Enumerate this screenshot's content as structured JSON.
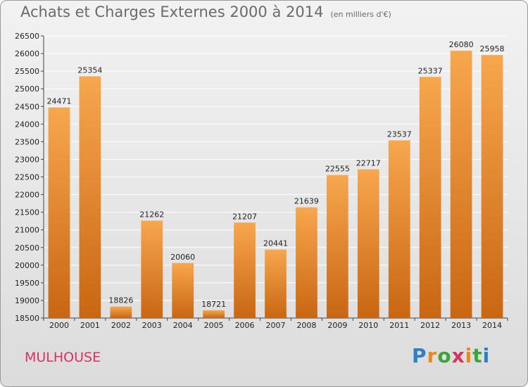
{
  "header": {
    "title": "Achats et Charges Externes 2000 à 2014",
    "subtitle": "(en milliers d'€)"
  },
  "footer": {
    "city": "MULHOUSE",
    "logo_text": "Proxiti"
  },
  "colors": {
    "bar_light": "#f7a74e",
    "bar_dark": "#c96612",
    "grid": "#ffffff",
    "logo_p": "#2f7fc8",
    "logo_r": "#e58a1f",
    "logo_o": "#3aa63a",
    "logo_x": "#d8325e"
  },
  "chart_data": {
    "type": "bar",
    "title": "Achats et Charges Externes 2000 à 2014",
    "subtitle": "(en milliers d'€)",
    "categories": [
      "2000",
      "2001",
      "2002",
      "2003",
      "2004",
      "2005",
      "2006",
      "2007",
      "2008",
      "2009",
      "2010",
      "2011",
      "2012",
      "2013",
      "2014"
    ],
    "values": [
      24471,
      25354,
      18826,
      21262,
      20060,
      18721,
      21207,
      20441,
      21639,
      22555,
      22717,
      23537,
      25337,
      26080,
      25958
    ],
    "ylim": [
      18500,
      26500
    ],
    "yticks": [
      18500,
      19000,
      19500,
      20000,
      20500,
      21000,
      21500,
      22000,
      22500,
      23000,
      23500,
      24000,
      24500,
      25000,
      25500,
      26000,
      26500
    ],
    "grid": true,
    "data_labels": true,
    "xlabel": "",
    "ylabel": ""
  }
}
